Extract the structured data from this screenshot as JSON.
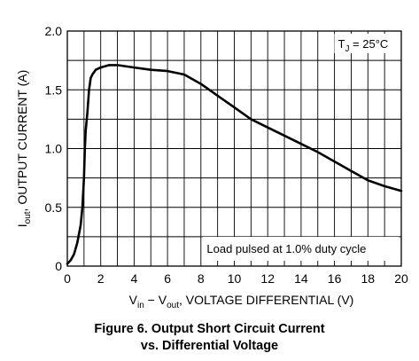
{
  "chart_data": {
    "type": "line",
    "xlabel": {
      "main": "V",
      "sub_in": "in",
      "minus": " − V",
      "sub_out": "out",
      "rest": ", VOLTAGE DIFFERENTIAL (V)"
    },
    "ylabel": {
      "main": "I",
      "sub": "out",
      "rest": ", OUTPUT CURRENT (A)"
    },
    "xlim": [
      0,
      20
    ],
    "ylim": [
      0,
      2.0
    ],
    "x_ticks": [
      0,
      2,
      4,
      6,
      8,
      10,
      12,
      14,
      16,
      18,
      20
    ],
    "x_tick_labels": [
      "0",
      "2",
      "4",
      "6",
      "8",
      "10",
      "12",
      "14",
      "16",
      "18",
      "20"
    ],
    "y_ticks": [
      0,
      0.5,
      1.0,
      1.5,
      2.0
    ],
    "y_tick_labels": [
      "0",
      "0.5",
      "1.0",
      "1.5",
      "2.0"
    ],
    "grid": true,
    "annotations": {
      "temperature": {
        "main": "T",
        "sub": "J",
        "rest": " = 25°C"
      },
      "note": "Load pulsed at 1.0% duty cycle"
    },
    "series": [
      {
        "color": "#000000",
        "x": [
          0,
          0.2,
          0.4,
          0.6,
          0.8,
          0.9,
          1.0,
          1.05,
          1.1,
          1.2,
          1.3,
          1.4,
          1.5,
          1.7,
          2.0,
          2.5,
          3.0,
          4.0,
          5.0,
          6.0,
          7.0,
          8.0,
          9.0,
          10.0,
          11.0,
          12.0,
          13.0,
          14.0,
          15.0,
          16.0,
          17.0,
          18.0,
          19.0,
          20.0
        ],
        "y": [
          0.02,
          0.05,
          0.1,
          0.2,
          0.35,
          0.5,
          0.75,
          1.0,
          1.15,
          1.3,
          1.5,
          1.6,
          1.63,
          1.67,
          1.69,
          1.71,
          1.71,
          1.69,
          1.67,
          1.66,
          1.63,
          1.55,
          1.45,
          1.35,
          1.25,
          1.18,
          1.11,
          1.04,
          0.97,
          0.89,
          0.81,
          0.73,
          0.68,
          0.64
        ]
      }
    ]
  },
  "caption": {
    "line1": "Figure 6. Output Short Circuit Current",
    "line2": "vs. Differential Voltage"
  }
}
